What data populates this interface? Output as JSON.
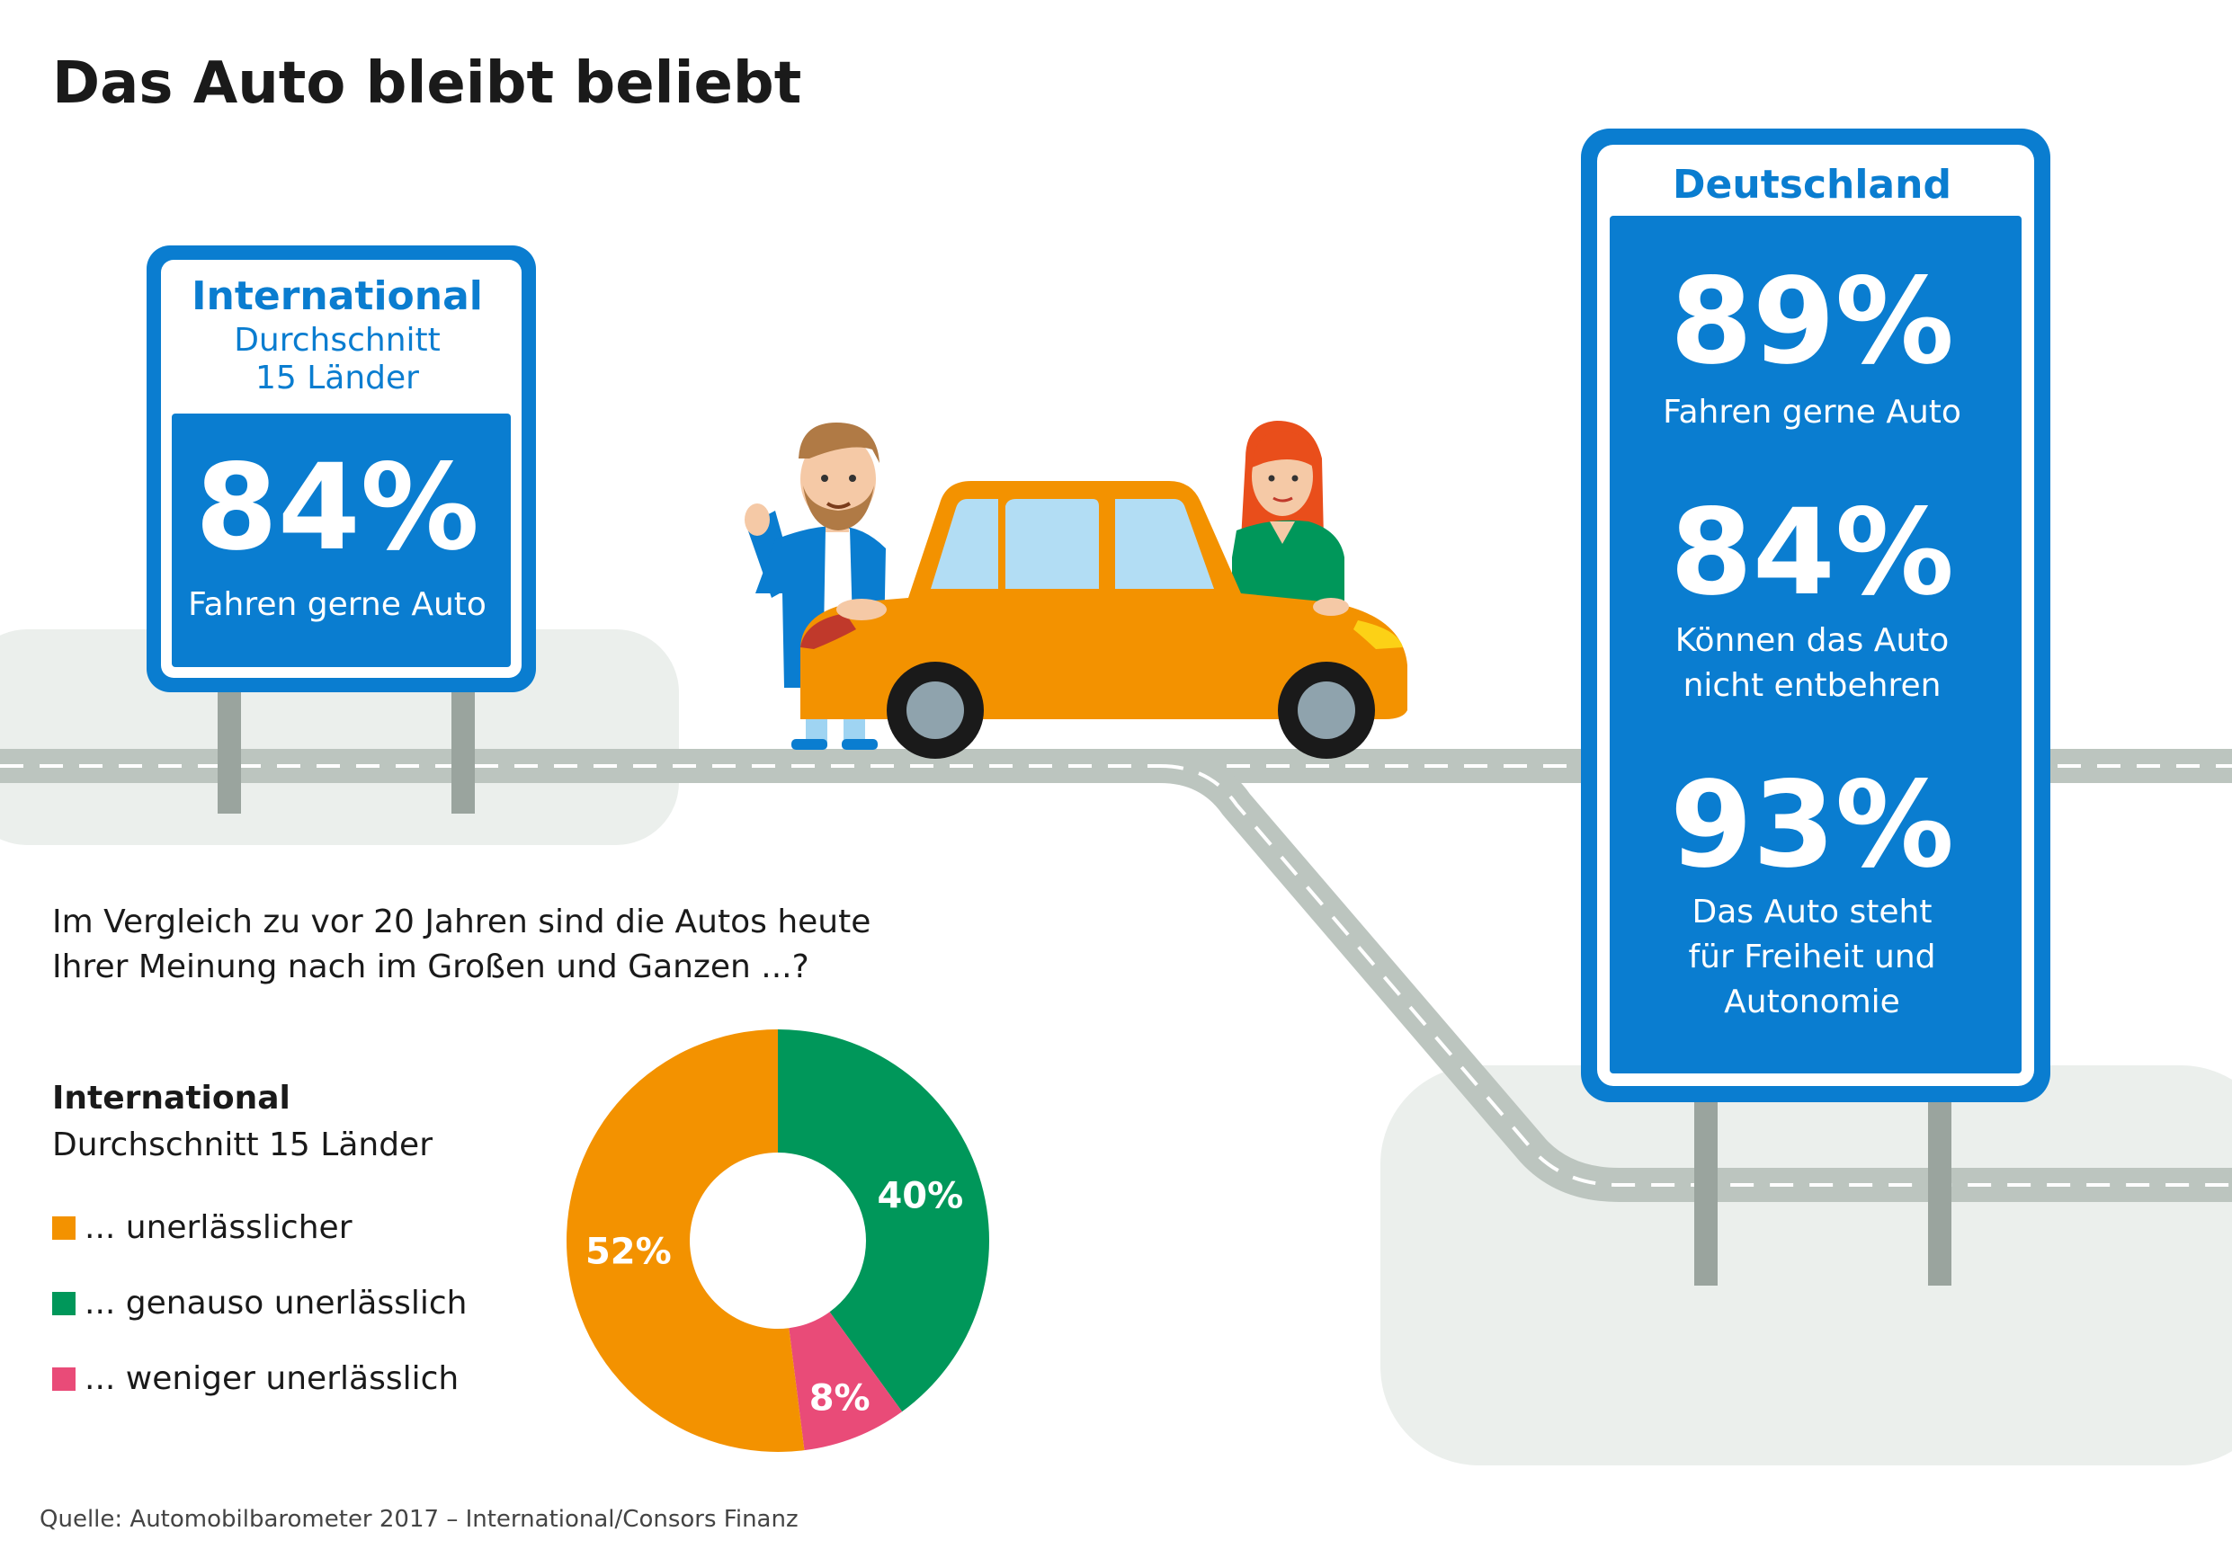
{
  "title": "Das Auto bleibt beliebt",
  "international_sign": {
    "heading": "International",
    "subheading_line1": "Durchschnitt",
    "subheading_line2": "15 Länder",
    "value": "84%",
    "label": "Fahren gerne Auto"
  },
  "deutschland_sign": {
    "heading": "Deutschland",
    "stats": [
      {
        "value": "89%",
        "label_lines": [
          "Fahren gerne Auto"
        ]
      },
      {
        "value": "84%",
        "label_lines": [
          "Können das Auto",
          "nicht entbehren"
        ]
      },
      {
        "value": "93%",
        "label_lines": [
          "Das Auto steht",
          "für Freiheit und",
          "Autonomie"
        ]
      }
    ]
  },
  "question_lines": [
    "Im Vergleich zu vor 20 Jahren sind die Autos heute",
    "Ihrer Meinung nach im Großen und Ganzen ...?"
  ],
  "legend_title_line1": "International",
  "legend_title_line2": "Durchschnitt 15 Länder",
  "source": "Quelle: Automobilbarometer 2017 – International/Consors Finanz",
  "colors": {
    "sign_blue": "#0a7dd0",
    "orange": "#f39200",
    "green": "#00975a",
    "pink": "#e94b78",
    "road": "#bcc5bf",
    "ground": "#ebefec"
  },
  "chart_data": {
    "type": "pie",
    "variant": "donut",
    "categories": [
      "... unerlässlicher",
      "... genauso unerlässlich",
      "... weniger unerlässlich"
    ],
    "values": [
      52,
      40,
      8
    ],
    "labels": [
      "52%",
      "40%",
      "8%"
    ],
    "colors": [
      "#f39200",
      "#00975a",
      "#e94b78"
    ],
    "unit": "%"
  }
}
